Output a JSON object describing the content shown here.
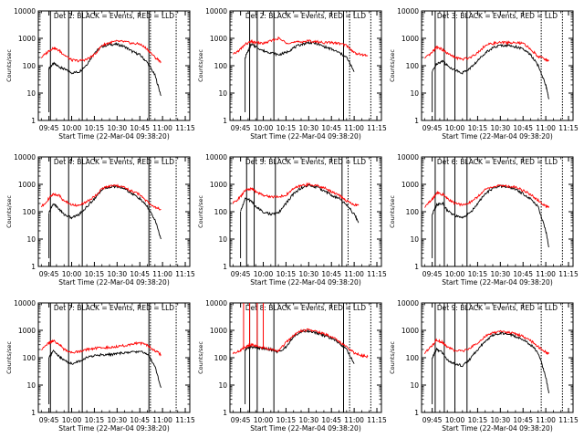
{
  "figure": {
    "ylabel": "Counts/sec",
    "xlabel": "Start Time (22-Mar-04 09:38:20)",
    "colors": {
      "events": "#000000",
      "lld": "#ff0000",
      "axes": "#000000"
    }
  },
  "chart_data": [
    {
      "type": "line",
      "title": "Det 1: BLACK = Events, RED = LLD",
      "xlabel": "Start Time (22-Mar-04 09:38:20)",
      "ylabel": "Counts/sec",
      "yscale": "log",
      "ylim": [
        1,
        10000
      ],
      "yticks": [
        "1",
        "10",
        "100",
        "1000",
        "10000"
      ],
      "xticks": [
        "09:45",
        "10:00",
        "10:15",
        "10:30",
        "10:45",
        "11:00",
        "11:15"
      ],
      "x": [
        "09:40",
        "09:45",
        "09:48",
        "09:52",
        "09:55",
        "10:00",
        "10:05",
        "10:10",
        "10:15",
        "10:20",
        "10:25",
        "10:30",
        "10:35",
        "10:40",
        "10:45",
        "10:50",
        "10:55",
        "10:59"
      ],
      "series": [
        {
          "name": "BLACK = Events",
          "values": [
            null,
            80,
            120,
            90,
            75,
            55,
            60,
            110,
            300,
            500,
            600,
            600,
            500,
            330,
            250,
            130,
            45,
            8
          ]
        },
        {
          "name": "RED = LLD",
          "values": [
            200,
            350,
            450,
            350,
            250,
            160,
            150,
            170,
            250,
            550,
            700,
            780,
            750,
            650,
            620,
            400,
            200,
            140
          ]
        }
      ],
      "solid_lines": [
        "09:46",
        "09:58",
        "10:07",
        "10:51"
      ],
      "dotted_lines": [
        "10:52",
        "11:09"
      ]
    },
    {
      "type": "line",
      "title": "Det 2: BLACK = Events, RED = LLD",
      "xlabel": "Start Time (22-Mar-04 09:38:20)",
      "ylabel": "Counts/sec",
      "yscale": "log",
      "ylim": [
        1,
        10000
      ],
      "yticks": [
        "1",
        "10",
        "100",
        "1000",
        "10000"
      ],
      "xticks": [
        "09:45",
        "10:00",
        "10:15",
        "10:30",
        "10:45",
        "11:00",
        "11:15"
      ],
      "x": [
        "09:40",
        "09:45",
        "09:48",
        "09:52",
        "09:55",
        "10:00",
        "10:05",
        "10:10",
        "10:15",
        "10:20",
        "10:25",
        "10:30",
        "10:35",
        "10:40",
        "10:45",
        "10:50",
        "10:55",
        "11:00",
        "11:05",
        "11:09"
      ],
      "series": [
        {
          "name": "BLACK = Events",
          "values": [
            null,
            null,
            200,
            600,
            500,
            350,
            300,
            250,
            300,
            450,
            600,
            700,
            650,
            500,
            400,
            300,
            200,
            60,
            null,
            null
          ]
        },
        {
          "name": "RED = LLD",
          "values": [
            250,
            400,
            600,
            750,
            700,
            650,
            800,
            1000,
            700,
            700,
            750,
            800,
            750,
            700,
            700,
            650,
            550,
            300,
            250,
            230
          ]
        }
      ],
      "solid_lines": [
        "09:51",
        "09:56",
        "10:07",
        "10:53"
      ],
      "dotted_lines": [
        "10:57",
        "11:11"
      ]
    },
    {
      "type": "line",
      "title": "Det 3: BLACK = Events, RED = LLD",
      "xlabel": "Start Time (22-Mar-04 09:38:20)",
      "ylabel": "Counts/sec",
      "yscale": "log",
      "ylim": [
        1,
        10000
      ],
      "yticks": [
        "1",
        "10",
        "100",
        "1000",
        "10000"
      ],
      "xticks": [
        "09:45",
        "10:00",
        "10:15",
        "10:30",
        "10:45",
        "11:00",
        "11:15"
      ],
      "x": [
        "09:40",
        "09:45",
        "09:48",
        "09:52",
        "09:55",
        "10:00",
        "10:05",
        "10:10",
        "10:15",
        "10:20",
        "10:25",
        "10:30",
        "10:35",
        "10:40",
        "10:45",
        "10:50",
        "10:55",
        "11:00",
        "11:02"
      ],
      "series": [
        {
          "name": "BLACK = Events",
          "values": [
            null,
            60,
            120,
            150,
            100,
            70,
            55,
            80,
            150,
            300,
            450,
            550,
            550,
            500,
            400,
            250,
            100,
            20,
            6
          ]
        },
        {
          "name": "RED = LLD",
          "values": [
            180,
            300,
            500,
            380,
            280,
            200,
            170,
            200,
            300,
            550,
            650,
            700,
            700,
            680,
            650,
            400,
            220,
            170,
            150
          ]
        }
      ],
      "solid_lines": [
        "09:47",
        "09:53",
        "10:00",
        "10:08"
      ],
      "dotted_lines": [
        "10:57",
        "11:11"
      ]
    },
    {
      "type": "line",
      "title": "Det 4: BLACK = Events, RED = LLD",
      "xlabel": "Start Time (22-Mar-04 09:38:20)",
      "ylabel": "Counts/sec",
      "yscale": "log",
      "ylim": [
        1,
        10000
      ],
      "yticks": [
        "1",
        "10",
        "100",
        "1000",
        "10000"
      ],
      "xticks": [
        "09:45",
        "10:00",
        "10:15",
        "10:30",
        "10:45",
        "11:00",
        "11:15"
      ],
      "x": [
        "09:40",
        "09:45",
        "09:48",
        "09:52",
        "09:55",
        "10:00",
        "10:05",
        "10:10",
        "10:15",
        "10:20",
        "10:25",
        "10:30",
        "10:35",
        "10:40",
        "10:45",
        "10:50",
        "10:55",
        "10:59"
      ],
      "series": [
        {
          "name": "BLACK = Events",
          "values": [
            null,
            90,
            200,
            120,
            80,
            60,
            80,
            150,
            300,
            650,
            800,
            850,
            700,
            450,
            300,
            150,
            50,
            10
          ]
        },
        {
          "name": "RED = LLD",
          "values": [
            150,
            300,
            450,
            380,
            250,
            180,
            170,
            230,
            350,
            700,
            850,
            900,
            750,
            550,
            420,
            230,
            150,
            120
          ]
        }
      ],
      "solid_lines": [
        "09:46",
        "09:58",
        "10:07",
        "10:51"
      ],
      "dotted_lines": [
        "10:52",
        "11:09"
      ]
    },
    {
      "type": "line",
      "title": "Det 5: BLACK = Events, RED = LLD",
      "xlabel": "Start Time (22-Mar-04 09:38:20)",
      "ylabel": "Counts/sec",
      "yscale": "log",
      "ylim": [
        1,
        10000
      ],
      "yticks": [
        "1",
        "10",
        "100",
        "1000",
        "10000"
      ],
      "xticks": [
        "09:45",
        "10:00",
        "10:15",
        "10:30",
        "10:45",
        "11:00",
        "11:15"
      ],
      "x": [
        "09:40",
        "09:45",
        "09:48",
        "09:52",
        "09:55",
        "10:00",
        "10:05",
        "10:10",
        "10:15",
        "10:20",
        "10:25",
        "10:30",
        "10:35",
        "10:40",
        "10:45",
        "10:50",
        "10:55",
        "11:00",
        "11:03"
      ],
      "series": [
        {
          "name": "BLACK = Events",
          "values": [
            null,
            100,
            300,
            250,
            150,
            100,
            80,
            90,
            200,
            450,
            750,
            900,
            800,
            600,
            400,
            300,
            180,
            80,
            40
          ]
        },
        {
          "name": "RED = LLD",
          "values": [
            200,
            350,
            600,
            700,
            550,
            400,
            350,
            350,
            400,
            700,
            900,
            1000,
            900,
            750,
            550,
            400,
            250,
            180,
            170
          ]
        }
      ],
      "solid_lines": [
        "09:49",
        "09:54",
        "10:08",
        "10:52"
      ],
      "dotted_lines": [
        "10:56",
        "11:11"
      ]
    },
    {
      "type": "line",
      "title": "Det 6: BLACK = Events, RED = LLD",
      "xlabel": "Start Time (22-Mar-04 09:38:20)",
      "ylabel": "Counts/sec",
      "yscale": "log",
      "ylim": [
        1,
        10000
      ],
      "yticks": [
        "1",
        "10",
        "100",
        "1000",
        "10000"
      ],
      "xticks": [
        "09:45",
        "10:00",
        "10:15",
        "10:30",
        "10:45",
        "11:00",
        "11:15"
      ],
      "x": [
        "09:40",
        "09:45",
        "09:48",
        "09:52",
        "09:55",
        "10:00",
        "10:05",
        "10:10",
        "10:15",
        "10:20",
        "10:25",
        "10:30",
        "10:35",
        "10:40",
        "10:45",
        "10:50",
        "10:55",
        "11:00",
        "11:02"
      ],
      "series": [
        {
          "name": "BLACK = Events",
          "values": [
            null,
            80,
            180,
            200,
            110,
            70,
            60,
            90,
            200,
            450,
            700,
            850,
            800,
            650,
            450,
            300,
            150,
            20,
            5
          ]
        },
        {
          "name": "RED = LLD",
          "values": [
            150,
            280,
            500,
            420,
            300,
            200,
            180,
            220,
            350,
            650,
            800,
            900,
            850,
            800,
            600,
            420,
            260,
            160,
            140
          ]
        }
      ],
      "solid_lines": [
        "09:47",
        "09:53",
        "10:00",
        "10:08"
      ],
      "dotted_lines": [
        "10:57",
        "11:11"
      ]
    },
    {
      "type": "line",
      "title": "Det 7: BLACK = Events, RED = LLD",
      "xlabel": "Start Time (22-Mar-04 09:38:20)",
      "ylabel": "Counts/sec",
      "yscale": "log",
      "ylim": [
        1,
        10000
      ],
      "yticks": [
        "1",
        "10",
        "100",
        "1000",
        "10000"
      ],
      "xticks": [
        "09:45",
        "10:00",
        "10:15",
        "10:30",
        "10:45",
        "11:00",
        "11:15"
      ],
      "x": [
        "09:40",
        "09:45",
        "09:48",
        "09:52",
        "09:55",
        "10:00",
        "10:05",
        "10:10",
        "10:15",
        "10:20",
        "10:25",
        "10:30",
        "10:35",
        "10:40",
        "10:45",
        "10:50",
        "10:55",
        "10:59"
      ],
      "series": [
        {
          "name": "BLACK = Events",
          "values": [
            null,
            100,
            180,
            110,
            80,
            60,
            75,
            100,
            120,
            130,
            130,
            140,
            150,
            160,
            170,
            140,
            50,
            8
          ]
        },
        {
          "name": "RED = LLD",
          "values": [
            200,
            350,
            420,
            300,
            200,
            150,
            170,
            200,
            220,
            230,
            240,
            260,
            280,
            320,
            350,
            280,
            180,
            130
          ]
        }
      ],
      "solid_lines": [
        "09:46",
        "09:58",
        "10:07",
        "10:51"
      ],
      "dotted_lines": [
        "10:52",
        "11:09"
      ]
    },
    {
      "type": "line",
      "title": "Det 8: BLACK = Events, RED = LLD",
      "xlabel": "Start Time (22-Mar-04 09:38:20)",
      "ylabel": "Counts/sec",
      "yscale": "log",
      "ylim": [
        1,
        10000
      ],
      "yticks": [
        "1",
        "10",
        "100",
        "1000",
        "10000"
      ],
      "xticks": [
        "09:45",
        "10:00",
        "10:15",
        "10:30",
        "10:45",
        "11:00",
        "11:15"
      ],
      "x": [
        "09:40",
        "09:45",
        "09:48",
        "09:52",
        "09:55",
        "10:00",
        "10:05",
        "10:10",
        "10:15",
        "10:20",
        "10:25",
        "10:30",
        "10:35",
        "10:40",
        "10:45",
        "10:50",
        "10:55",
        "11:00",
        "11:05",
        "11:09"
      ],
      "series": [
        {
          "name": "BLACK = Events",
          "values": [
            null,
            null,
            200,
            250,
            230,
            220,
            200,
            160,
            250,
            600,
            900,
            950,
            800,
            650,
            500,
            350,
            200,
            60,
            null,
            null
          ]
        },
        {
          "name": "RED = LLD",
          "values": [
            150,
            180,
            250,
            300,
            280,
            230,
            200,
            180,
            350,
            650,
            950,
            1050,
            900,
            750,
            600,
            400,
            250,
            150,
            120,
            110
          ]
        }
      ],
      "spikes": {
        "x": [
          "09:47",
          "09:51",
          "09:56",
          "10:00"
        ],
        "value": 10000
      },
      "solid_lines": [
        "09:51",
        "09:56",
        "10:07",
        "10:53"
      ],
      "dotted_lines": [
        "10:57",
        "11:11"
      ]
    },
    {
      "type": "line",
      "title": "Det 9: BLACK = Events, RED = LLD",
      "xlabel": "Start Time (22-Mar-04 09:38:20)",
      "ylabel": "Counts/sec",
      "yscale": "log",
      "ylim": [
        1,
        10000
      ],
      "yticks": [
        "1",
        "10",
        "100",
        "1000",
        "10000"
      ],
      "xticks": [
        "09:45",
        "10:00",
        "10:15",
        "10:30",
        "10:45",
        "11:00",
        "11:15"
      ],
      "x": [
        "09:40",
        "09:45",
        "09:48",
        "09:52",
        "09:55",
        "10:00",
        "10:05",
        "10:10",
        "10:15",
        "10:20",
        "10:25",
        "10:30",
        "10:35",
        "10:40",
        "10:45",
        "10:50",
        "10:55",
        "11:00",
        "11:02"
      ],
      "series": [
        {
          "name": "BLACK = Events",
          "values": [
            null,
            100,
            200,
            150,
            80,
            60,
            50,
            90,
            200,
            400,
            650,
            800,
            750,
            600,
            450,
            300,
            150,
            20,
            5
          ]
        },
        {
          "name": "RED = LLD",
          "values": [
            150,
            280,
            450,
            350,
            250,
            180,
            170,
            220,
            350,
            600,
            800,
            900,
            850,
            750,
            600,
            420,
            250,
            160,
            140
          ]
        }
      ],
      "solid_lines": [
        "09:47",
        "09:53",
        "10:00",
        "10:08"
      ],
      "dotted_lines": [
        "10:57",
        "11:11"
      ]
    }
  ]
}
